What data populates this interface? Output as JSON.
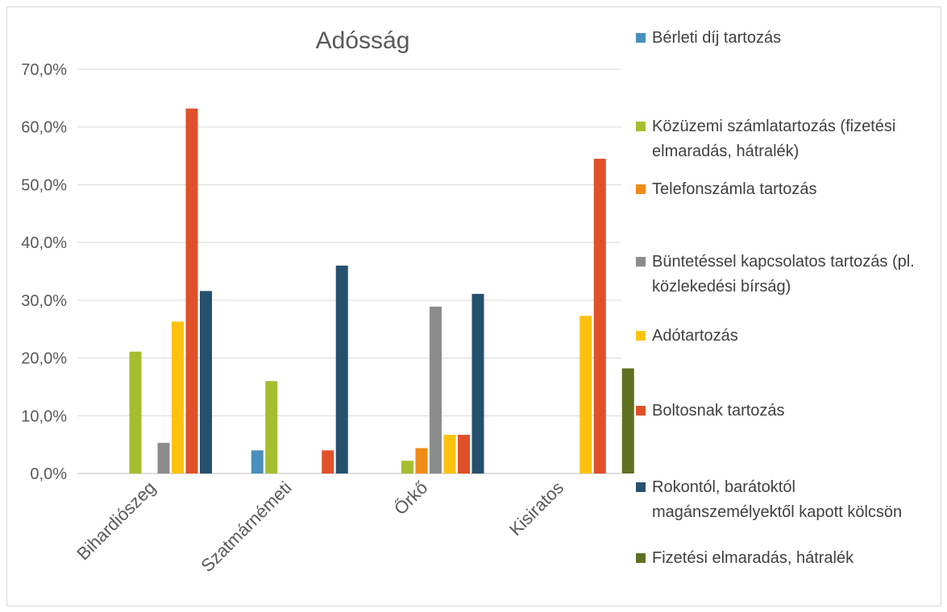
{
  "chart_data": {
    "type": "bar",
    "title": "Adósság",
    "xlabel": "",
    "ylabel": "",
    "ylim": [
      0,
      70
    ],
    "yticks": [
      "0,0%",
      "10,0%",
      "20,0%",
      "30,0%",
      "40,0%",
      "50,0%",
      "60,0%",
      "70,0%"
    ],
    "grid": true,
    "legend_position": "right",
    "categories": [
      "Bihardiószeg",
      "Szatmárnémeti",
      "Őrkő",
      "Kisiratos"
    ],
    "series": [
      {
        "name": "Bérleti díj tartozás",
        "color": "#4a8fbe",
        "values": [
          0,
          4.0,
          0,
          0
        ]
      },
      {
        "name": "Közüzemi számlatartozás (fizetési elmaradás, hátralék)",
        "color": "#a5bd2e",
        "values": [
          21.1,
          16.0,
          2.2,
          0
        ]
      },
      {
        "name": "Telefonszámla tartozás",
        "color": "#f08c1a",
        "values": [
          0,
          0,
          4.4,
          0
        ]
      },
      {
        "name": "Büntetéssel kapcsolatos tartozás (pl. közlekedési bírság)",
        "color": "#8c8c8c",
        "values": [
          5.3,
          0,
          28.9,
          0
        ]
      },
      {
        "name": "Adótartozás",
        "color": "#fcc20f",
        "values": [
          26.3,
          0,
          6.7,
          27.3
        ]
      },
      {
        "name": "Boltosnak tartozás",
        "color": "#e0512a",
        "values": [
          63.2,
          4.0,
          6.7,
          54.5
        ]
      },
      {
        "name": "Rokontól, barátoktól magánszemélyektől kapott kölcsön",
        "color": "#25506e",
        "values": [
          31.6,
          36.0,
          31.1,
          0
        ]
      },
      {
        "name": "Fizetési elmaradás, hátralék",
        "color": "#5e7120",
        "values": [
          0,
          0,
          0,
          18.2
        ]
      }
    ]
  }
}
